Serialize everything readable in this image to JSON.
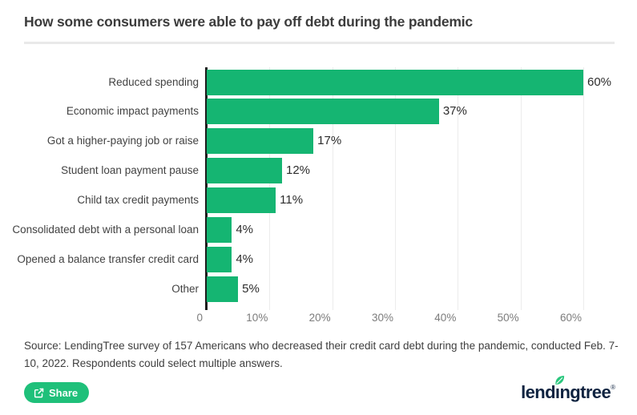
{
  "header": {
    "title": "How some consumers were able to pay off debt during the pandemic"
  },
  "chart_data": {
    "type": "bar",
    "orientation": "horizontal",
    "title": "How some consumers were able to pay off debt during the pandemic",
    "categories": [
      "Reduced spending",
      "Economic impact payments",
      "Got a higher-paying job or raise",
      "Student loan payment pause",
      "Child tax credit payments",
      "Consolidated debt with a personal loan",
      "Opened a balance transfer credit card",
      "Other"
    ],
    "values": [
      60,
      37,
      17,
      12,
      11,
      4,
      4,
      5
    ],
    "value_labels": [
      "60%",
      "37%",
      "17%",
      "12%",
      "11%",
      "4%",
      "4%",
      "5%"
    ],
    "x_ticks": [
      {
        "label": "0",
        "value": 0
      },
      {
        "label": "10%",
        "value": 10
      },
      {
        "label": "20%",
        "value": 20
      },
      {
        "label": "30%",
        "value": 30
      },
      {
        "label": "40%",
        "value": 40
      },
      {
        "label": "50%",
        "value": 50
      },
      {
        "label": "60%",
        "value": 60
      }
    ],
    "xlim": [
      0,
      60
    ],
    "grid": "vertical-only",
    "bar_color": "#15b572",
    "axis_color": "#1d1d1d",
    "gridline_color": "#ececec"
  },
  "footer": {
    "source": "Source: LendingTree survey of 157 Americans who decreased their credit card debt during the pandemic, conducted Feb. 7-10, 2022. Respondents could select multiple answers.",
    "share_label": "Share",
    "logo_text": "lendingtree",
    "logo_registered": "®"
  },
  "colors": {
    "bar_green": "#15b572",
    "share_button_green": "#1fc07a",
    "logo_navy": "#0e2340",
    "leaf_green": "#2bc77e",
    "title_text": "#3c3c3c",
    "tick_text": "#7c7c7c",
    "background": "#ffffff"
  }
}
